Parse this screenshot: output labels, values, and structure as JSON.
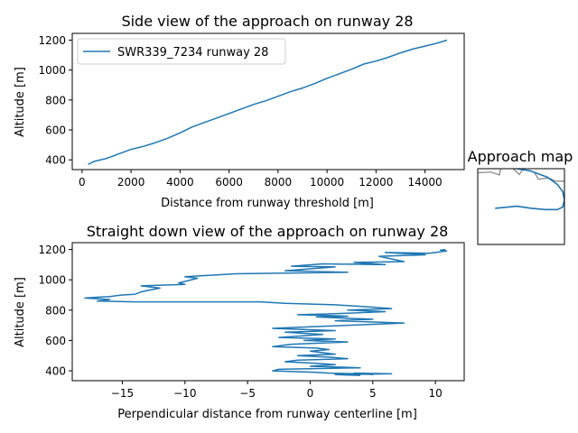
{
  "colors": {
    "series": "#1f77b4",
    "map_line": "#808080",
    "axes": "#000000",
    "background": "#ffffff"
  },
  "chart_data": [
    {
      "type": "line",
      "title": "Side view of the approach on runway 28",
      "xlabel": "Distance from runway threshold [m]",
      "ylabel": "Altitude [m]",
      "xlim": [
        -400,
        15600
      ],
      "ylim": [
        335,
        1245
      ],
      "xticks": [
        0,
        2000,
        4000,
        6000,
        8000,
        10000,
        12000,
        14000
      ],
      "xtick_labels": [
        "0",
        "2000",
        "4000",
        "6000",
        "8000",
        "10000",
        "12000",
        "14000"
      ],
      "yticks": [
        400,
        600,
        800,
        1000,
        1200
      ],
      "ytick_labels": [
        "400",
        "600",
        "800",
        "1000",
        "1200"
      ],
      "grid": false,
      "legend": "top-left",
      "series": [
        {
          "name": "SWR339_7234 runway 28",
          "x": [
            250,
            500,
            1000,
            1500,
            2000,
            2500,
            3000,
            3500,
            4000,
            4500,
            5000,
            5500,
            6000,
            6500,
            7000,
            7500,
            8000,
            8500,
            9000,
            9500,
            10000,
            10500,
            11000,
            11500,
            12000,
            12500,
            13000,
            13500,
            14000,
            14500,
            14900
          ],
          "y": [
            370,
            390,
            410,
            440,
            470,
            490,
            515,
            545,
            580,
            620,
            650,
            680,
            710,
            740,
            770,
            795,
            825,
            855,
            880,
            910,
            945,
            975,
            1005,
            1040,
            1060,
            1085,
            1115,
            1140,
            1160,
            1180,
            1200
          ]
        }
      ]
    },
    {
      "type": "line",
      "title": "Straight down view of the approach on runway 28",
      "xlabel": "Perpendicular distance from runway centerline [m]",
      "ylabel": "Altitude [m]",
      "xlim": [
        -19,
        12.3
      ],
      "ylim": [
        335,
        1245
      ],
      "xticks": [
        -15,
        -10,
        -5,
        0,
        5,
        10
      ],
      "xtick_labels": [
        "−15",
        "−10",
        "−5",
        "0",
        "5",
        "10"
      ],
      "yticks": [
        400,
        600,
        800,
        1000,
        1200
      ],
      "ytick_labels": [
        "400",
        "600",
        "800",
        "1000",
        "1200"
      ],
      "grid": false,
      "series": [
        {
          "x": [
            10.8,
            10.4,
            10.9,
            9.5,
            6.0,
            9.2,
            5.5,
            7.5,
            3.5,
            6.0,
            1.0,
            -1.5,
            2.0,
            -2.0,
            3.0,
            -6.0,
            -10.0,
            -9.0,
            -10.5,
            -10.0,
            -13.5,
            -12.0,
            -13.0,
            -13.5,
            -14.0,
            -15.0,
            -16.0,
            -17.0,
            -18.0,
            -16.0,
            -17.0,
            -14.0,
            -4.0,
            -2.0,
            2.0,
            3.0,
            5.0,
            6.5,
            3.0,
            6.0,
            1.5,
            -1.0,
            3.0,
            0.5,
            5.0,
            2.0,
            7.5,
            3.0,
            0.0,
            -3.0,
            2.0,
            -2.0,
            1.0,
            -2.5,
            2.0,
            -0.5,
            3.0,
            -1.5,
            -3.0,
            0.5,
            1.5,
            0.0,
            2.0,
            -1.0,
            1.5,
            3.0,
            -1.0,
            -2.0,
            0.5,
            2.0,
            0.0,
            4.0,
            -2.5,
            -3.0,
            0.5,
            1.5,
            4.0,
            5.0,
            3.5,
            6.5,
            2.0,
            4.0
          ],
          "y": [
            1200,
            1195,
            1190,
            1175,
            1180,
            1165,
            1155,
            1120,
            1115,
            1100,
            1105,
            1090,
            1085,
            1060,
            1050,
            1040,
            1020,
            1010,
            980,
            970,
            960,
            945,
            930,
            920,
            905,
            900,
            890,
            885,
            880,
            870,
            860,
            855,
            855,
            845,
            835,
            830,
            820,
            810,
            800,
            790,
            775,
            770,
            760,
            755,
            740,
            730,
            715,
            700,
            690,
            680,
            665,
            655,
            640,
            620,
            610,
            600,
            590,
            575,
            560,
            550,
            540,
            530,
            510,
            500,
            490,
            480,
            470,
            460,
            450,
            440,
            430,
            420,
            410,
            400,
            390,
            385,
            380,
            375,
            385,
            380,
            375,
            370
          ]
        }
      ]
    }
  ],
  "map": {
    "title": "Approach map",
    "shoreline": [
      [
        -1.0,
        0.22
      ],
      [
        0.15,
        0.08
      ],
      [
        0.25,
        0.15
      ],
      [
        0.27,
        -0.08
      ],
      [
        0.38,
        -0.05
      ],
      [
        0.48,
        0.14
      ],
      [
        0.52,
        0.02
      ],
      [
        0.65,
        0.08
      ],
      [
        0.7,
        0.25
      ],
      [
        0.82,
        0.22
      ],
      [
        0.9,
        0.3
      ],
      [
        1.0,
        0.3
      ],
      [
        1.2,
        0.28
      ]
    ],
    "track": [
      [
        0.2,
        0.95
      ],
      [
        0.45,
        0.9
      ],
      [
        0.62,
        0.95
      ],
      [
        0.78,
        0.98
      ],
      [
        0.92,
        0.98
      ],
      [
        0.98,
        0.92
      ],
      [
        1.0,
        0.75
      ],
      [
        0.98,
        0.55
      ],
      [
        0.92,
        0.38
      ],
      [
        0.8,
        0.2
      ],
      [
        0.6,
        0.05
      ],
      [
        0.45,
        0.0
      ],
      [
        0.3,
        -0.05
      ]
    ]
  }
}
